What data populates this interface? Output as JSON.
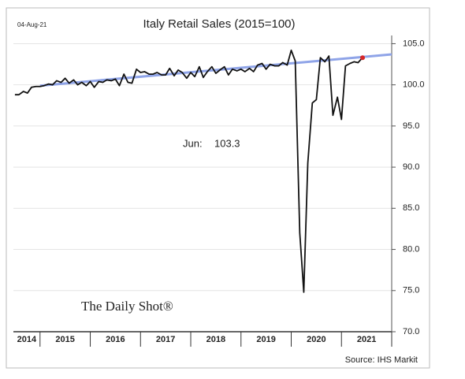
{
  "chart_data": {
    "type": "line",
    "title": "Italy Retail Sales (2015=100)",
    "date_stamp": "04-Aug-21",
    "annotation": {
      "label": "Jun:",
      "value": 103.3
    },
    "branding": "The Daily Shot®",
    "source": "Source: IHS Markit",
    "x": [
      2014.5,
      2014.58,
      2014.67,
      2014.75,
      2014.83,
      2014.92,
      2015.0,
      2015.08,
      2015.17,
      2015.25,
      2015.33,
      2015.42,
      2015.5,
      2015.58,
      2015.67,
      2015.75,
      2015.83,
      2015.92,
      2016.0,
      2016.08,
      2016.17,
      2016.25,
      2016.33,
      2016.42,
      2016.5,
      2016.58,
      2016.67,
      2016.75,
      2016.83,
      2016.92,
      2017.0,
      2017.08,
      2017.17,
      2017.25,
      2017.33,
      2017.42,
      2017.5,
      2017.58,
      2017.67,
      2017.75,
      2017.83,
      2017.92,
      2018.0,
      2018.08,
      2018.17,
      2018.25,
      2018.33,
      2018.42,
      2018.5,
      2018.58,
      2018.67,
      2018.75,
      2018.83,
      2018.92,
      2019.0,
      2019.08,
      2019.17,
      2019.25,
      2019.33,
      2019.42,
      2019.5,
      2019.58,
      2019.67,
      2019.75,
      2019.83,
      2019.92,
      2020.0,
      2020.08,
      2020.17,
      2020.25,
      2020.33,
      2020.42,
      2020.5,
      2020.58,
      2020.67,
      2020.75,
      2020.83,
      2020.92,
      2021.0,
      2021.08,
      2021.17,
      2021.25,
      2021.33,
      2021.42
    ],
    "series": [
      {
        "name": null,
        "color": "#111111",
        "values": [
          98.8,
          98.8,
          99.2,
          99.0,
          99.7,
          99.8,
          99.8,
          99.9,
          100.1,
          100.0,
          100.5,
          100.3,
          100.8,
          100.2,
          100.6,
          100.0,
          100.3,
          99.9,
          100.4,
          99.7,
          100.4,
          100.3,
          100.6,
          100.5,
          100.7,
          99.9,
          101.3,
          100.3,
          100.2,
          101.9,
          101.5,
          101.6,
          101.3,
          101.3,
          101.5,
          101.2,
          101.2,
          102.0,
          101.1,
          101.8,
          101.5,
          100.8,
          101.5,
          101.0,
          102.2,
          100.9,
          101.6,
          102.2,
          101.4,
          101.8,
          102.2,
          101.2,
          101.9,
          101.7,
          101.9,
          101.6,
          102.0,
          101.6,
          102.4,
          102.6,
          101.9,
          102.5,
          102.3,
          102.3,
          102.7,
          102.4,
          104.2,
          102.9,
          82.0,
          74.8,
          90.5,
          97.8,
          98.2,
          103.3,
          102.8,
          103.5,
          96.3,
          98.5,
          95.8,
          102.3,
          102.6,
          102.8,
          102.7,
          103.3
        ]
      }
    ],
    "trend": {
      "color": "#8fa4e8",
      "x": [
        2015.0,
        2022.0
      ],
      "values": [
        99.9,
        103.7
      ]
    },
    "highlight_color": "#d62728",
    "xlim": [
      2014.47,
      2022.0
    ],
    "xticks": [
      2015,
      2016,
      2017,
      2018,
      2019,
      2020,
      2021,
      2022
    ],
    "x_labels": [
      "2014",
      "2015",
      "2016",
      "2017",
      "2018",
      "2019",
      "2020",
      "2021"
    ],
    "ylim": [
      70,
      106
    ],
    "yticks": [
      {
        "value": 70,
        "label": "70.0"
      },
      {
        "value": 75,
        "label": "75.0"
      },
      {
        "value": 80,
        "label": "80.0"
      },
      {
        "value": 85,
        "label": "85.0"
      },
      {
        "value": 90,
        "label": "90.0"
      },
      {
        "value": 95,
        "label": "95.0"
      },
      {
        "value": 100,
        "label": "100.0"
      },
      {
        "value": 105,
        "label": "105.0"
      }
    ],
    "grid": true
  }
}
